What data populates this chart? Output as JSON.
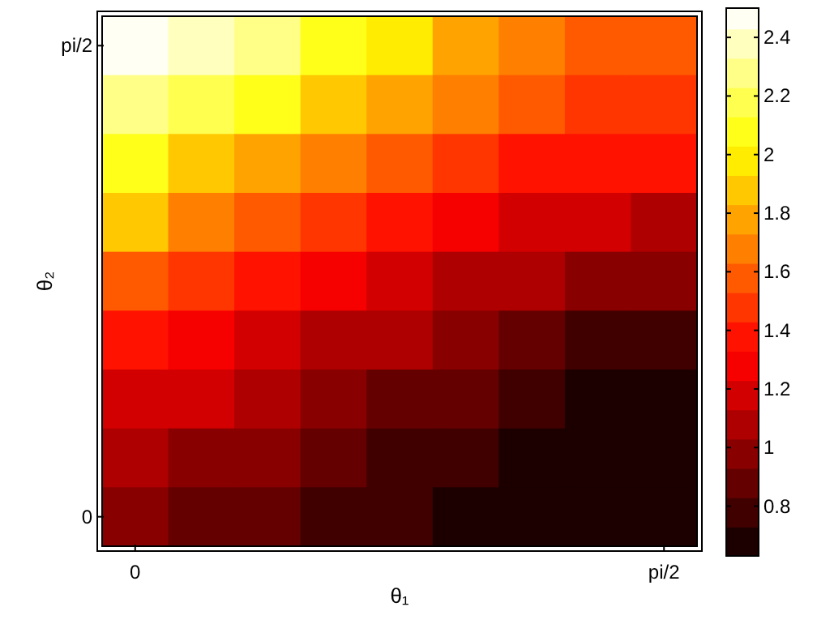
{
  "chart_data": {
    "type": "heatmap",
    "xlabel": "θ₁",
    "ylabel": "θ₂",
    "categories": [
      "0",
      null,
      null,
      null,
      null,
      null,
      null,
      null,
      "pi/2"
    ],
    "y_categories": [
      "pi/2",
      null,
      null,
      null,
      null,
      null,
      null,
      null,
      "0"
    ],
    "cells": [
      [
        2.5,
        2.4,
        2.3,
        2.12,
        1.95,
        1.8,
        1.65,
        1.61,
        1.57
      ],
      [
        2.3,
        2.17,
        2.05,
        1.9,
        1.75,
        1.65,
        1.55,
        1.51,
        1.47
      ],
      [
        2.05,
        1.92,
        1.8,
        1.67,
        1.55,
        1.47,
        1.4,
        1.37,
        1.35
      ],
      [
        1.85,
        1.72,
        1.6,
        1.49,
        1.38,
        1.3,
        1.22,
        1.17,
        1.13
      ],
      [
        1.62,
        1.51,
        1.4,
        1.3,
        1.2,
        1.12,
        1.04,
        1.0,
        0.96
      ],
      [
        1.42,
        1.32,
        1.22,
        1.13,
        1.05,
        0.96,
        0.88,
        0.83,
        0.78
      ],
      [
        1.22,
        1.15,
        1.07,
        1.0,
        0.92,
        0.84,
        0.77,
        0.73,
        0.69
      ],
      [
        1.08,
        1.02,
        0.95,
        0.88,
        0.82,
        0.76,
        0.7,
        0.68,
        0.66
      ],
      [
        0.95,
        0.9,
        0.85,
        0.8,
        0.75,
        0.71,
        0.67,
        0.65,
        0.64
      ]
    ],
    "clim": [
      0.63,
      2.5
    ],
    "cticks": [
      0.8,
      1,
      1.2,
      1.4,
      1.6,
      1.8,
      2,
      2.2,
      2.4
    ]
  }
}
